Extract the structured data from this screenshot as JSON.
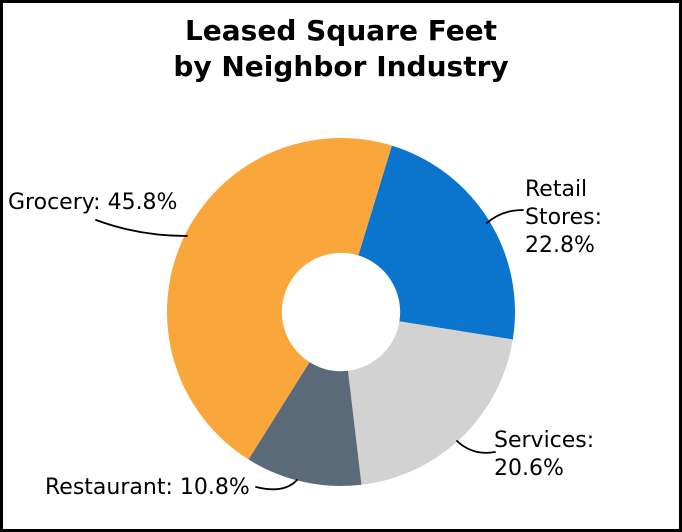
{
  "frame": {
    "background": "#FFFFFF",
    "border_color": "#000000"
  },
  "title": {
    "line1": "Leased Square Feet",
    "line2": "by Neighbor Industry"
  },
  "chart_data": {
    "type": "pie",
    "subtype": "donut",
    "title": "Leased Square Feet by Neighbor Industry",
    "categories": [
      "Retail Stores",
      "Services",
      "Restaurant",
      "Grocery"
    ],
    "values": [
      22.8,
      20.6,
      10.8,
      45.8
    ],
    "unit": "%",
    "colors": [
      "#0B74CC",
      "#D2D2D2",
      "#5B6A79",
      "#F9A73A"
    ],
    "start_angle_deg": 17,
    "donut_hole_ratio": 0.34,
    "direction": "clockwise",
    "legend": "none",
    "data_label_format": "category: value%",
    "leader_line_color": "#000000"
  }
}
